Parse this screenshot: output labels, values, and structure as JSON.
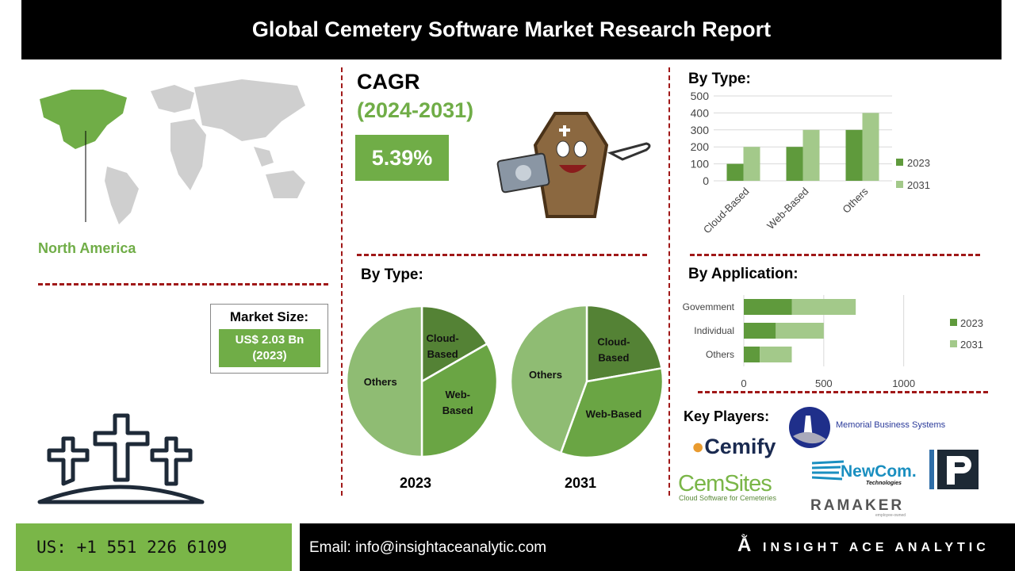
{
  "header": {
    "title": "Global Cemetery Software Market  Research Report"
  },
  "region": {
    "label": "North America"
  },
  "market_size": {
    "title": "Market Size:",
    "value_line1": "US$ 2.03 Bn",
    "value_line2": "(2023)"
  },
  "cagr": {
    "label": "CAGR",
    "years": "(2024-2031)",
    "value": "5.39%"
  },
  "colors": {
    "accent": "#70ad47",
    "dark_green": "#548235",
    "mid_green": "#6aa544",
    "light_green": "#a9d18e",
    "divider": "#a01818"
  },
  "chart_data": [
    {
      "type": "bar",
      "title": "By Type:",
      "categories": [
        "Cloud-Based",
        "Web-Based",
        "Others"
      ],
      "series": [
        {
          "name": "2023",
          "values": [
            100,
            200,
            300
          ],
          "color": "#5f9a3c"
        },
        {
          "name": "2031",
          "values": [
            200,
            300,
            400
          ],
          "color": "#a3c98a"
        }
      ],
      "ylim": [
        0,
        500
      ],
      "yticks": [
        0,
        100,
        200,
        300,
        400,
        500
      ],
      "grid": true,
      "legend": "right"
    },
    {
      "type": "pie",
      "title": "By Type:",
      "charts": [
        {
          "label": "2023",
          "slices": [
            {
              "name": "Cloud-Based",
              "display": [
                "Cloud-",
                "Based"
              ],
              "value": 100,
              "color": "#548235"
            },
            {
              "name": "Web-Based",
              "display": [
                "Web-",
                "Based"
              ],
              "value": 200,
              "color": "#6aa544"
            },
            {
              "name": "Others",
              "display": [
                "Others"
              ],
              "value": 300,
              "color": "#8fbc73"
            }
          ]
        },
        {
          "label": "2031",
          "slices": [
            {
              "name": "Cloud-Based",
              "display": [
                "Cloud-",
                "Based"
              ],
              "value": 200,
              "color": "#548235"
            },
            {
              "name": "Web-Based",
              "display": [
                "Web-Based"
              ],
              "value": 300,
              "color": "#6aa544"
            },
            {
              "name": "Others",
              "display": [
                "Others"
              ],
              "value": 400,
              "color": "#8fbc73"
            }
          ]
        }
      ]
    },
    {
      "type": "bar",
      "orientation": "horizontal",
      "stacked": true,
      "title": "By Application:",
      "categories": [
        "Govemment",
        "Individual",
        "Others"
      ],
      "series": [
        {
          "name": "2023",
          "values": [
            300,
            200,
            100
          ],
          "color": "#5f9a3c"
        },
        {
          "name": "2031",
          "values": [
            400,
            300,
            200
          ],
          "color": "#a3c98a"
        }
      ],
      "xlim": [
        0,
        1200
      ],
      "xticks": [
        0,
        500,
        1000
      ],
      "grid": true,
      "legend": "right"
    }
  ],
  "key_players": {
    "title": "Key Players:",
    "logos": [
      "Cemify",
      "Memorial Business Systems",
      "CemSites",
      "Cloud Software for Cemeteries",
      "NewCom.",
      "Technologies",
      "RAMAKER",
      "employee-owned",
      "IP"
    ]
  },
  "footer": {
    "phone": "US: +1 551 226 6109",
    "email": "Email: info@insightaceanalytic.com",
    "brand": "INSIGHT ACE ANALYTIC"
  }
}
